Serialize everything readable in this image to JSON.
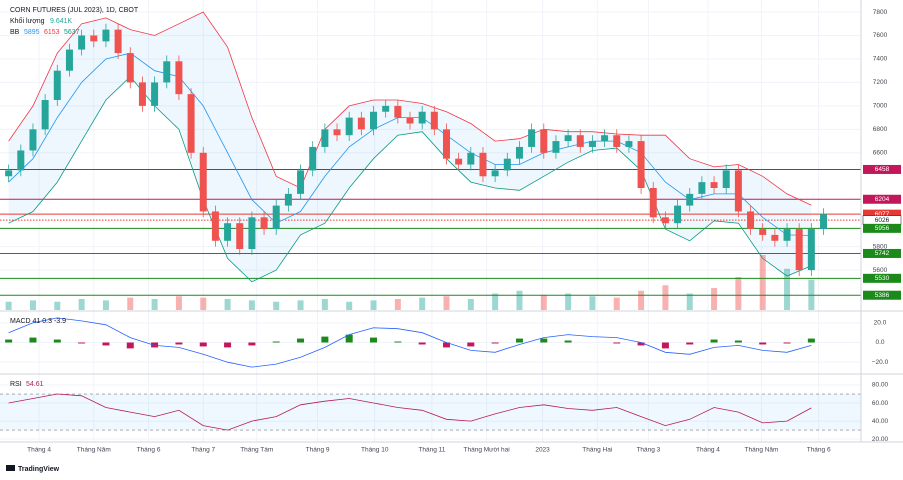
{
  "chart_data": {
    "type": "candlestick",
    "title": "CORN FUTURES (JUL 2023), 1D, CBOT",
    "volume_legend": {
      "label": "Khối lượng",
      "value": "9.641K"
    },
    "bb_label": "BB",
    "grid": true,
    "up_color": "#26a69a",
    "down_color": "#ef5350",
    "xlim": [
      -0.3,
      70
    ],
    "xticks": [
      {
        "value": 2.5,
        "label": "Tháng 4"
      },
      {
        "value": 7,
        "label": "Tháng Năm"
      },
      {
        "value": 11.5,
        "label": "Tháng 6"
      },
      {
        "value": 16,
        "label": "Tháng 7"
      },
      {
        "value": 20.4,
        "label": "Tháng Tám"
      },
      {
        "value": 25.4,
        "label": "Tháng 9"
      },
      {
        "value": 30.1,
        "label": "Tháng 10"
      },
      {
        "value": 34.8,
        "label": "Tháng 11"
      },
      {
        "value": 39.3,
        "label": "Tháng Mười hai"
      },
      {
        "value": 43.9,
        "label": "2023"
      },
      {
        "value": 48.4,
        "label": "Tháng Hai"
      },
      {
        "value": 52.6,
        "label": "Tháng 3"
      },
      {
        "value": 57.5,
        "label": "Tháng 4"
      },
      {
        "value": 61.9,
        "label": "Tháng Năm"
      },
      {
        "value": 66.6,
        "label": "Tháng 6"
      }
    ],
    "ylim": [
      5260,
      7860
    ],
    "yticks": [
      5600,
      5800,
      6600,
      6800,
      7000,
      7200,
      7400,
      7600,
      7800
    ],
    "open": [
      6400,
      6450,
      6620,
      6800,
      7050,
      7300,
      7480,
      7600,
      7550,
      7650,
      7450,
      7200,
      7000,
      7200,
      7380,
      7100,
      6600,
      6100,
      5850,
      6000,
      5780,
      6050,
      5950,
      6150,
      6250,
      6450,
      6650,
      6800,
      6750,
      6900,
      6800,
      6950,
      7000,
      6900,
      6850,
      6950,
      6800,
      6550,
      6500,
      6600,
      6400,
      6450,
      6550,
      6650,
      6800,
      6600,
      6700,
      6750,
      6650,
      6700,
      6750,
      6650,
      6700,
      6300,
      6050,
      6000,
      6150,
      6250,
      6350,
      6300,
      6450,
      6100,
      5950,
      5900,
      5850,
      5950,
      5600,
      5950
    ],
    "high": [
      6500,
      6670,
      6850,
      7100,
      7350,
      7530,
      7650,
      7650,
      7700,
      7700,
      7500,
      7250,
      7250,
      7430,
      7430,
      7150,
      6650,
      6150,
      6050,
      6050,
      6100,
      6100,
      6200,
      6300,
      6500,
      6700,
      6850,
      6850,
      6950,
      6950,
      7000,
      7050,
      7050,
      6950,
      7000,
      7000,
      6850,
      6600,
      6650,
      6650,
      6500,
      6600,
      6700,
      6850,
      6850,
      6750,
      6800,
      6800,
      6750,
      6800,
      6800,
      6750,
      6750,
      6350,
      6100,
      6200,
      6300,
      6400,
      6400,
      6500,
      6500,
      6150,
      6000,
      5950,
      6000,
      6000,
      6000,
      6127
    ],
    "low": [
      6350,
      6400,
      6570,
      6750,
      7000,
      7250,
      7430,
      7500,
      7500,
      7400,
      7150,
      6950,
      6950,
      7150,
      7050,
      6550,
      6050,
      5800,
      5800,
      5730,
      5730,
      5900,
      5900,
      6100,
      6200,
      6400,
      6600,
      6700,
      6700,
      6750,
      6750,
      6900,
      6850,
      6800,
      6800,
      6750,
      6500,
      6450,
      6450,
      6350,
      6350,
      6400,
      6500,
      6600,
      6550,
      6550,
      6650,
      6600,
      6600,
      6650,
      6600,
      6600,
      6250,
      6000,
      5950,
      5950,
      6100,
      6200,
      6250,
      6250,
      6050,
      5900,
      5850,
      5800,
      5800,
      5550,
      5550,
      5900
    ],
    "close": [
      6450,
      6620,
      6800,
      7050,
      7300,
      7480,
      7600,
      7550,
      7650,
      7450,
      7200,
      7000,
      7200,
      7380,
      7100,
      6600,
      6100,
      5850,
      6000,
      5780,
      6050,
      5950,
      6150,
      6250,
      6450,
      6650,
      6800,
      6750,
      6900,
      6800,
      6950,
      7000,
      6900,
      6850,
      6950,
      6800,
      6550,
      6500,
      6600,
      6400,
      6450,
      6550,
      6650,
      6800,
      6600,
      6700,
      6750,
      6650,
      6700,
      6750,
      6650,
      6700,
      6300,
      6050,
      6000,
      6150,
      6250,
      6350,
      6300,
      6450,
      6100,
      5950,
      5900,
      5850,
      5950,
      5600,
      5950,
      6077
    ],
    "levels": [
      {
        "value": 6458,
        "color": "#c2185b"
      },
      {
        "value": 6204,
        "color": "#c2185b"
      },
      {
        "value": 6077,
        "color": "#e53935"
      },
      {
        "value": 6026,
        "color": "#e53935",
        "style": "dotted"
      },
      {
        "value": 5956,
        "color": "#1b8a1b"
      },
      {
        "value": 5742,
        "color": "#1b8a1b"
      },
      {
        "value": 5530,
        "color": "#1b8a1b"
      },
      {
        "value": 5386,
        "color": "#1b8a1b"
      }
    ],
    "indicator_x": [
      0,
      2,
      4,
      6,
      8,
      10,
      12,
      14,
      16,
      18,
      20,
      22,
      24,
      26,
      28,
      30,
      32,
      34,
      36,
      38,
      40,
      42,
      44,
      46,
      48,
      50,
      52,
      54,
      56,
      58,
      60,
      62,
      64,
      66
    ],
    "bb": {
      "upper": {
        "color": "#f23645",
        "values": [
          6700,
          7000,
          7450,
          7700,
          7750,
          7650,
          7600,
          7700,
          7800,
          7500,
          6900,
          6400,
          6300,
          6800,
          7000,
          7050,
          7050,
          7020,
          6950,
          6850,
          6700,
          6720,
          6800,
          6780,
          6780,
          6760,
          6750,
          6750,
          6550,
          6480,
          6500,
          6400,
          6250,
          6153
        ]
      },
      "middle": {
        "color": "#2196f3",
        "values": [
          6350,
          6550,
          6900,
          7200,
          7400,
          7450,
          7300,
          7250,
          7000,
          6600,
          6200,
          6000,
          6100,
          6400,
          6650,
          6800,
          6900,
          6900,
          6750,
          6600,
          6500,
          6500,
          6600,
          6650,
          6700,
          6700,
          6600,
          6350,
          6200,
          6250,
          6250,
          6050,
          5900,
          5895
        ]
      },
      "lower": {
        "color": "#089981",
        "values": [
          6000,
          6100,
          6350,
          6700,
          7050,
          7250,
          7000,
          6800,
          6200,
          5700,
          5500,
          5600,
          5900,
          6000,
          6300,
          6550,
          6750,
          6780,
          6550,
          6350,
          6300,
          6280,
          6400,
          6520,
          6620,
          6640,
          6450,
          5950,
          5850,
          6020,
          6000,
          5700,
          5550,
          5637
        ]
      }
    },
    "volume": {
      "ylim": [
        0,
        400
      ],
      "values": [
        30,
        35,
        30,
        40,
        35,
        45,
        40,
        50,
        45,
        40,
        35,
        30,
        35,
        40,
        30,
        35,
        40,
        45,
        50,
        40,
        60,
        70,
        55,
        60,
        50,
        45,
        70,
        90,
        60,
        80,
        120,
        200,
        150,
        110
      ]
    },
    "macd": {
      "label": "MACD 41 0.3 -3.9",
      "ylim": [
        -30,
        30
      ],
      "yticks": [
        {
          "value": 20,
          "label": "20.0"
        },
        {
          "value": 0,
          "label": "0.0"
        },
        {
          "value": -20,
          "label": "−20.0"
        }
      ],
      "line": {
        "color": "#2962ff",
        "values": [
          10,
          20,
          25,
          22,
          18,
          5,
          -3,
          -5,
          -12,
          -20,
          -25,
          -22,
          -15,
          -5,
          8,
          15,
          14,
          10,
          0,
          -8,
          -10,
          -2,
          5,
          8,
          6,
          5,
          0,
          -10,
          -12,
          -5,
          -3,
          -8,
          -10,
          -3
        ]
      },
      "histogram": {
        "up_color": "#1b8a1b",
        "down_color": "#c2185b",
        "values": [
          3,
          5,
          3,
          -1,
          -3,
          -6,
          -5,
          -2,
          -4,
          -5,
          -3,
          1,
          4,
          6,
          8,
          5,
          1,
          -2,
          -5,
          -4,
          -1,
          4,
          4,
          2,
          0,
          -1,
          -3,
          -6,
          -2,
          3,
          2,
          -2,
          -1,
          4
        ]
      }
    },
    "rsi": {
      "label": "RSI",
      "color": "#b71c50",
      "ylim": [
        19,
        90
      ],
      "yticks": [
        {
          "value": 80,
          "label": "80.00"
        },
        {
          "value": 60,
          "label": "60.00"
        },
        {
          "value": 40,
          "label": "40.00"
        },
        {
          "value": 20,
          "label": "20.00"
        }
      ],
      "bands": [
        70,
        30
      ],
      "values": [
        60,
        65,
        70,
        68,
        55,
        50,
        45,
        52,
        35,
        30,
        40,
        45,
        58,
        62,
        65,
        60,
        55,
        52,
        42,
        40,
        48,
        55,
        58,
        54,
        52,
        55,
        45,
        35,
        42,
        55,
        50,
        38,
        40,
        54.61
      ]
    },
    "footer": "TradingView"
  }
}
